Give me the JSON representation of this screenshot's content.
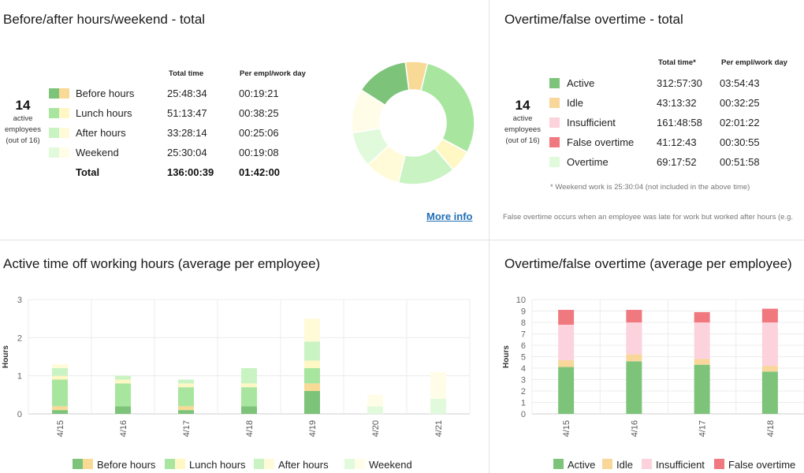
{
  "top_left": {
    "title": "Before/after hours/weekend - total",
    "employees": {
      "count": "14",
      "label1": "active",
      "label2": "employees",
      "label3": "(out of 16)"
    },
    "headers": {
      "total_time": "Total time",
      "per_empl": "Per empl/work day"
    },
    "rows": [
      {
        "label": "Before hours",
        "total": "25:48:34",
        "per": "00:19:21",
        "colors": [
          "#7dc47a",
          "#f9d996"
        ]
      },
      {
        "label": "Lunch hours",
        "total": "51:13:47",
        "per": "00:38:25",
        "colors": [
          "#a8e6a0",
          "#fff7c4"
        ]
      },
      {
        "label": "After hours",
        "total": "33:28:14",
        "per": "00:25:06",
        "colors": [
          "#c9f3c3",
          "#fffbd8"
        ]
      },
      {
        "label": "Weekend",
        "total": "25:30:04",
        "per": "00:19:08",
        "colors": [
          "#e2fadc",
          "#fffde8"
        ]
      }
    ],
    "total_row": {
      "label": "Total",
      "total": "136:00:39",
      "per": "01:42:00"
    },
    "more_info": "More info"
  },
  "top_right": {
    "title": "Overtime/false overtime - total",
    "employees": {
      "count": "14",
      "label1": "active",
      "label2": "employees",
      "label3": "(out of 16)"
    },
    "headers": {
      "total_time": "Total time*",
      "per_empl": "Per empl/work day"
    },
    "rows": [
      {
        "label": "Active",
        "total": "312:57:30",
        "per": "03:54:43",
        "color": "#7dc47a"
      },
      {
        "label": "Idle",
        "total": "43:13:32",
        "per": "00:32:25",
        "color": "#f9d69a"
      },
      {
        "label": "Insufficient",
        "total": "161:48:58",
        "per": "02:01:22",
        "color": "#fcd2dc"
      },
      {
        "label": "False overtime",
        "total": "41:12:43",
        "per": "00:30:55",
        "color": "#f0787f"
      },
      {
        "label": "Overtime",
        "total": "69:17:52",
        "per": "00:51:58",
        "color": "#e2fadc"
      }
    ],
    "footnote": "* Weekend work is 25:30:04 (not included in the above time)",
    "note": "False overtime occurs when an employee was late for work but worked after hours (e.g."
  },
  "bottom_left_title": "Active time off working hours (average per employee)",
  "bottom_right_title": "Overtime/false overtime (average per employee)",
  "chart_data": [
    {
      "type": "pie",
      "title": "Before/after hours/weekend - total",
      "donut": true,
      "slices": [
        {
          "name": "Before hours (idle)",
          "value": 5,
          "color": "#f9d996"
        },
        {
          "name": "Lunch hours (active)",
          "value": 25,
          "color": "#a8e6a0"
        },
        {
          "name": "Lunch hours (idle)",
          "value": 5,
          "color": "#fff7c4"
        },
        {
          "name": "After hours (active)",
          "value": 13,
          "color": "#c9f3c3"
        },
        {
          "name": "After hours (idle)",
          "value": 8,
          "color": "#fffbd8"
        },
        {
          "name": "Weekend (active)",
          "value": 8,
          "color": "#e2fadc"
        },
        {
          "name": "Weekend (idle)",
          "value": 10,
          "color": "#fffde8"
        },
        {
          "name": "Before hours (active)",
          "value": 12,
          "color": "#7dc47a"
        }
      ]
    },
    {
      "type": "bar",
      "stacked": true,
      "title": "Active time off working hours (average per employee)",
      "ylabel": "Hours",
      "ylim": [
        0,
        3
      ],
      "yticks": [
        "0",
        "1",
        "2",
        "3"
      ],
      "categories": [
        "4/15",
        "4/16",
        "4/17",
        "4/18",
        "4/19",
        "4/20",
        "4/21"
      ],
      "series": [
        {
          "name": "Before hours (active)",
          "color": "#7dc47a",
          "values": [
            0.1,
            0.2,
            0.1,
            0.2,
            0.6,
            0,
            0
          ]
        },
        {
          "name": "Before hours (idle)",
          "color": "#f9d996",
          "values": [
            0.1,
            0,
            0.1,
            0,
            0.2,
            0,
            0
          ]
        },
        {
          "name": "Lunch hours (active)",
          "color": "#a8e6a0",
          "values": [
            0.7,
            0.6,
            0.5,
            0.5,
            0.4,
            0,
            0
          ]
        },
        {
          "name": "Lunch hours (idle)",
          "color": "#fff7c4",
          "values": [
            0.1,
            0.1,
            0.1,
            0.1,
            0.2,
            0,
            0
          ]
        },
        {
          "name": "After hours (active)",
          "color": "#c9f3c3",
          "values": [
            0.2,
            0.1,
            0.1,
            0.4,
            0.5,
            0,
            0
          ]
        },
        {
          "name": "After hours (idle)",
          "color": "#fffbd8",
          "values": [
            0.1,
            0,
            0,
            0,
            0.6,
            0,
            0
          ]
        },
        {
          "name": "Weekend (active)",
          "color": "#e2fadc",
          "values": [
            0,
            0,
            0,
            0,
            0,
            0.2,
            0.4
          ]
        },
        {
          "name": "Weekend (idle)",
          "color": "#fffde8",
          "values": [
            0,
            0,
            0,
            0,
            0,
            0.3,
            0.7
          ]
        }
      ],
      "legend": [
        {
          "label": "Before hours",
          "colors": [
            "#7dc47a",
            "#f9d996"
          ]
        },
        {
          "label": "Lunch hours",
          "colors": [
            "#a8e6a0",
            "#fff7c4"
          ]
        },
        {
          "label": "After hours",
          "colors": [
            "#c9f3c3",
            "#fffbd8"
          ]
        },
        {
          "label": "Weekend",
          "colors": [
            "#e2fadc",
            "#fffde8"
          ]
        }
      ]
    },
    {
      "type": "bar",
      "stacked": true,
      "title": "Overtime/false overtime (average per employee)",
      "ylabel": "Hours",
      "ylim": [
        0,
        10
      ],
      "yticks": [
        "0",
        "1",
        "2",
        "3",
        "4",
        "5",
        "6",
        "7",
        "8",
        "9",
        "10"
      ],
      "categories": [
        "4/15",
        "4/16",
        "4/17",
        "4/18"
      ],
      "series": [
        {
          "name": "Active",
          "color": "#7dc47a",
          "values": [
            4.1,
            4.6,
            4.3,
            3.7
          ]
        },
        {
          "name": "Idle",
          "color": "#f9d69a",
          "values": [
            0.6,
            0.6,
            0.5,
            0.5
          ]
        },
        {
          "name": "Insufficient",
          "color": "#fcd2dc",
          "values": [
            3.1,
            2.8,
            3.2,
            3.8
          ]
        },
        {
          "name": "False overtime",
          "color": "#f0787f",
          "values": [
            1.3,
            1.1,
            0.9,
            1.2
          ]
        }
      ],
      "legend": [
        {
          "label": "Active",
          "colors": [
            "#7dc47a"
          ]
        },
        {
          "label": "Idle",
          "colors": [
            "#f9d69a"
          ]
        },
        {
          "label": "Insufficient",
          "colors": [
            "#fcd2dc"
          ]
        },
        {
          "label": "False overtime",
          "colors": [
            "#f0787f"
          ]
        }
      ]
    }
  ]
}
